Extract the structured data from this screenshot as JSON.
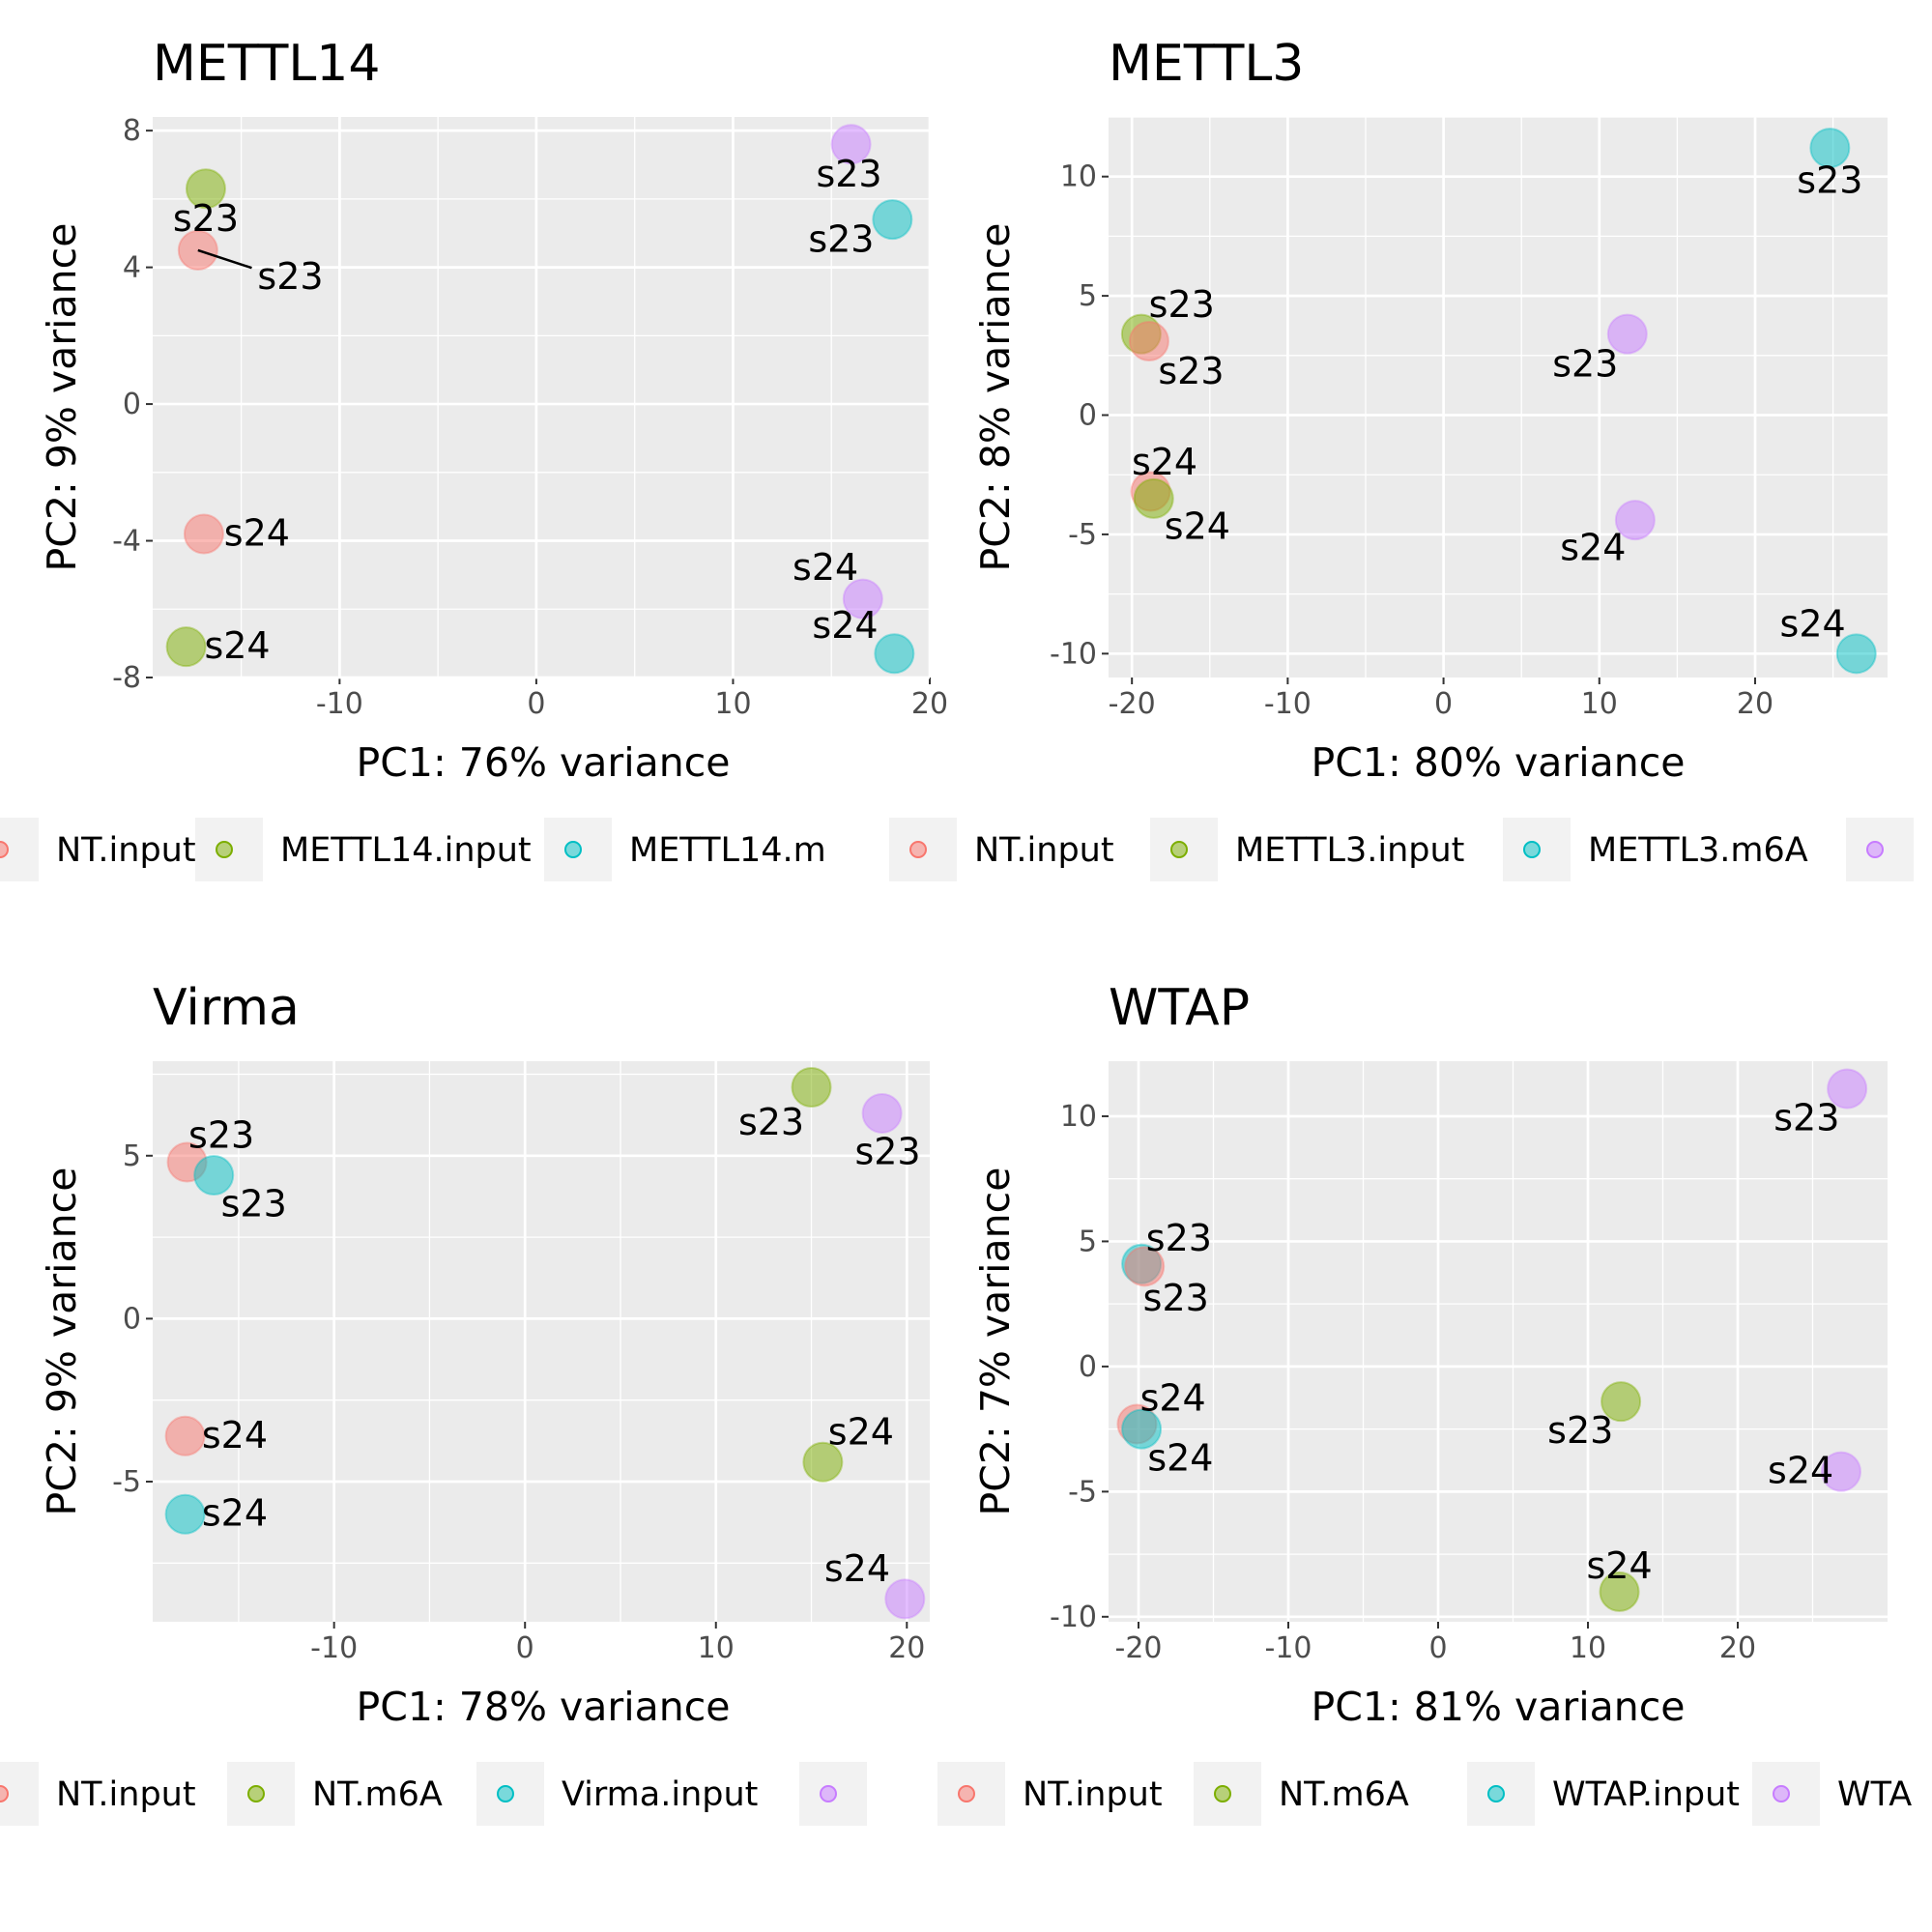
{
  "chart_data": [
    {
      "type": "scatter",
      "title": "METTL14",
      "xlabel": "PC1: 76% variance",
      "ylabel": "PC2: 9% variance",
      "xlim": [
        -19.5,
        20
      ],
      "ylim": [
        -8,
        8.4
      ],
      "xticks": [
        -10,
        0,
        10,
        20
      ],
      "xtick_labels": [
        "-10",
        "0",
        "10",
        "20"
      ],
      "yticks": [
        -8,
        -4,
        0,
        4,
        8
      ],
      "ytick_labels": [
        "-8",
        "-4",
        "0",
        "4",
        "8"
      ],
      "grid": true,
      "legend_position": "bottom",
      "legend": [
        "NT.input",
        "METTL14.input",
        "METTL14.m"
      ],
      "points": [
        {
          "x": -16.8,
          "y": 6.3,
          "group": 1,
          "label": "s23",
          "lx": -16.8,
          "ly": 5.4
        },
        {
          "x": -17.2,
          "y": 4.5,
          "group": 0,
          "label": "s23",
          "lx": -12.5,
          "ly": 3.7,
          "leader": true
        },
        {
          "x": -16.9,
          "y": -3.8,
          "group": 0,
          "label": "s24",
          "lx": -14.2,
          "ly": -3.8
        },
        {
          "x": -17.8,
          "y": -7.1,
          "group": 1,
          "label": "s24",
          "lx": -15.2,
          "ly": -7.1
        },
        {
          "x": 16.0,
          "y": 7.6,
          "group": 3,
          "label": "s23",
          "lx": 15.9,
          "ly": 6.7
        },
        {
          "x": 18.1,
          "y": 5.4,
          "group": 2,
          "label": "s23",
          "lx": 15.5,
          "ly": 4.8
        },
        {
          "x": 16.6,
          "y": -5.7,
          "group": 3,
          "label": "s24",
          "lx": 14.7,
          "ly": -4.8
        },
        {
          "x": 18.2,
          "y": -7.3,
          "group": 2,
          "label": "s24",
          "lx": 15.7,
          "ly": -6.5
        }
      ]
    },
    {
      "type": "scatter",
      "title": "METTL3",
      "xlabel": "PC1: 80% variance",
      "ylabel": "PC2: 8% variance",
      "xlim": [
        -21.5,
        28.5
      ],
      "ylim": [
        -11,
        12.5
      ],
      "xticks": [
        -20,
        -10,
        0,
        10,
        20
      ],
      "xtick_labels": [
        "-20",
        "-10",
        "0",
        "10",
        "20"
      ],
      "yticks": [
        -10,
        -5,
        0,
        5,
        10
      ],
      "ytick_labels": [
        "-10",
        "-5",
        "0",
        "5",
        "10"
      ],
      "grid": true,
      "legend_position": "bottom",
      "legend": [
        "NT.input",
        "METTL3.input",
        "METTL3.m6A",
        ""
      ],
      "points": [
        {
          "x": -19.4,
          "y": 3.4,
          "group": 1,
          "label": "s23",
          "lx": -16.8,
          "ly": 4.6
        },
        {
          "x": -18.9,
          "y": 3.1,
          "group": 0,
          "label": "s23",
          "lx": -16.2,
          "ly": 1.8
        },
        {
          "x": -18.8,
          "y": -3.2,
          "group": 0,
          "label": "s24",
          "lx": -17.9,
          "ly": -2.0
        },
        {
          "x": -18.6,
          "y": -3.5,
          "group": 1,
          "label": "s24",
          "lx": -15.8,
          "ly": -4.7
        },
        {
          "x": 11.8,
          "y": 3.4,
          "group": 3,
          "label": "s23",
          "lx": 9.1,
          "ly": 2.1
        },
        {
          "x": 12.3,
          "y": -4.4,
          "group": 3,
          "label": "s24",
          "lx": 9.6,
          "ly": -5.6
        },
        {
          "x": 24.8,
          "y": 11.2,
          "group": 2,
          "label": "s23",
          "lx": 24.8,
          "ly": 9.8
        },
        {
          "x": 26.5,
          "y": -10.0,
          "group": 2,
          "label": "s24",
          "lx": 23.7,
          "ly": -8.8
        }
      ]
    },
    {
      "type": "scatter",
      "title": "Virma",
      "xlabel": "PC1: 78% variance",
      "ylabel": "PC2: 9% variance",
      "xlim": [
        -19.5,
        21.2
      ],
      "ylim": [
        -9.3,
        7.9
      ],
      "xticks": [
        -10,
        0,
        10,
        20
      ],
      "xtick_labels": [
        "-10",
        "0",
        "10",
        "20"
      ],
      "yticks": [
        -5,
        0,
        5
      ],
      "ytick_labels": [
        "-5",
        "0",
        "5"
      ],
      "grid": true,
      "legend_position": "bottom",
      "legend": [
        "NT.input",
        "NT.m6A",
        "Virma.input",
        ""
      ],
      "points": [
        {
          "x": -17.7,
          "y": 4.8,
          "group": 0,
          "label": "s23",
          "lx": -15.9,
          "ly": 5.6
        },
        {
          "x": -16.3,
          "y": 4.4,
          "group": 2,
          "label": "s23",
          "lx": -14.2,
          "ly": 3.5
        },
        {
          "x": -17.8,
          "y": -3.6,
          "group": 0,
          "label": "s24",
          "lx": -15.2,
          "ly": -3.6
        },
        {
          "x": -17.8,
          "y": -6.0,
          "group": 2,
          "label": "s24",
          "lx": -15.2,
          "ly": -6.0
        },
        {
          "x": 15.0,
          "y": 7.1,
          "group": 1,
          "label": "s23",
          "lx": 12.9,
          "ly": 6.0
        },
        {
          "x": 18.7,
          "y": 6.3,
          "group": 3,
          "label": "s23",
          "lx": 19.0,
          "ly": 5.1
        },
        {
          "x": 15.6,
          "y": -4.4,
          "group": 1,
          "label": "s24",
          "lx": 17.6,
          "ly": -3.5
        },
        {
          "x": 19.9,
          "y": -8.6,
          "group": 3,
          "label": "s24",
          "lx": 17.4,
          "ly": -7.7
        }
      ]
    },
    {
      "type": "scatter",
      "title": "WTAP",
      "xlabel": "PC1: 81% variance",
      "ylabel": "PC2: 7% variance",
      "xlim": [
        -22,
        30
      ],
      "ylim": [
        -10.2,
        12.2
      ],
      "xticks": [
        -20,
        -10,
        0,
        10,
        20
      ],
      "xtick_labels": [
        "-20",
        "-10",
        "0",
        "10",
        "20"
      ],
      "yticks": [
        -10,
        -5,
        0,
        5,
        10
      ],
      "ytick_labels": [
        "-10",
        "-5",
        "0",
        "5",
        "10"
      ],
      "grid": true,
      "legend_position": "bottom",
      "legend": [
        "NT.input",
        "NT.m6A",
        "WTAP.input",
        "WTA"
      ],
      "points": [
        {
          "x": -19.8,
          "y": 4.1,
          "group": 2,
          "label": "s23",
          "lx": -17.3,
          "ly": 5.1
        },
        {
          "x": -19.6,
          "y": 4.0,
          "group": 0,
          "label": "s23",
          "lx": -17.5,
          "ly": 2.7
        },
        {
          "x": -20.1,
          "y": -2.3,
          "group": 0,
          "label": "s24",
          "lx": -17.7,
          "ly": -1.3
        },
        {
          "x": -19.8,
          "y": -2.5,
          "group": 2,
          "label": "s24",
          "lx": -17.2,
          "ly": -3.7
        },
        {
          "x": 12.2,
          "y": -1.4,
          "group": 1,
          "label": "s23",
          "lx": 9.5,
          "ly": -2.6
        },
        {
          "x": 12.1,
          "y": -9.0,
          "group": 1,
          "label": "s24",
          "lx": 12.1,
          "ly": -8.0
        },
        {
          "x": 27.3,
          "y": 11.1,
          "group": 3,
          "label": "s23",
          "lx": 24.6,
          "ly": 9.9
        },
        {
          "x": 26.9,
          "y": -4.2,
          "group": 3,
          "label": "s24",
          "lx": 24.2,
          "ly": -4.2
        }
      ]
    }
  ],
  "colors": {
    "groups": [
      "#F8766D",
      "#7CAE00",
      "#00BFC4",
      "#C77CFF"
    ],
    "panel_background": "#EBEBEB",
    "grid": "#FFFFFF",
    "legend_key_background": "#F2F2F2",
    "text": "#000000",
    "tick_text": "#4D4D4D"
  }
}
